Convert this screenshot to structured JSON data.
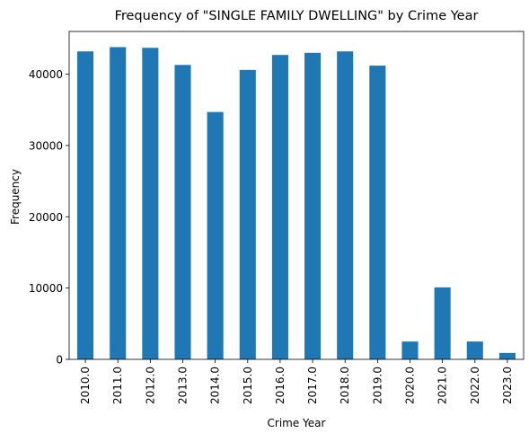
{
  "chart_data": {
    "type": "bar",
    "title": "Frequency of \"SINGLE FAMILY DWELLING\" by Crime Year",
    "xlabel": "Crime Year",
    "ylabel": "Frequency",
    "categories": [
      "2010.0",
      "2011.0",
      "2012.0",
      "2013.0",
      "2014.0",
      "2015.0",
      "2016.0",
      "2017.0",
      "2018.0",
      "2019.0",
      "2020.0",
      "2021.0",
      "2022.0",
      "2023.0"
    ],
    "values": [
      43200,
      43800,
      43700,
      41300,
      34700,
      40600,
      42700,
      43000,
      43200,
      41200,
      2500,
      10100,
      2500,
      900
    ],
    "yticks": [
      0,
      10000,
      20000,
      30000,
      40000
    ],
    "ylim": [
      0,
      46000
    ],
    "grid": false,
    "bar_color": "#1f77b4"
  }
}
